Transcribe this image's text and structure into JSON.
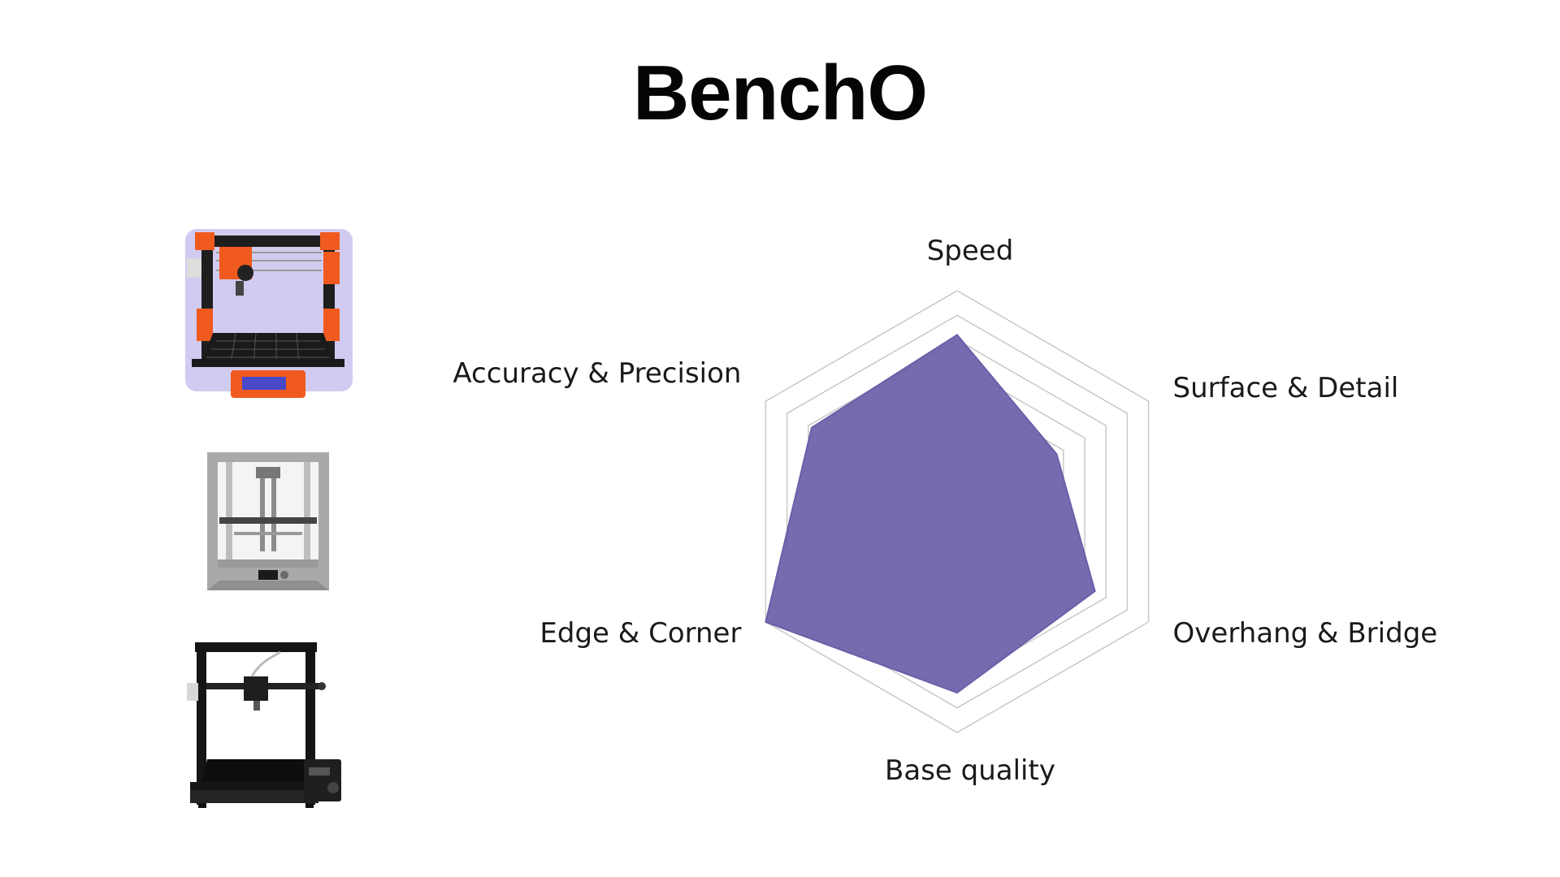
{
  "title": "BenchO",
  "printers": [
    {
      "icon": "orange-open-frame-printer-icon"
    },
    {
      "icon": "grey-enclosed-printer-icon"
    },
    {
      "icon": "black-open-frame-printer-icon"
    }
  ],
  "colors": {
    "fill": "#6b5ea8",
    "grid": "#c8c8c8",
    "label": "#1a1a1a"
  },
  "chart_data": {
    "type": "radar",
    "title": "BenchO",
    "axes": [
      "Speed",
      "Surface & Detail",
      "Overhang & Bridge",
      "Base quality",
      "Edge & Corner",
      "Accuracy & Precision"
    ],
    "max": 10,
    "grid_levels": 9,
    "grid": true,
    "series": [
      {
        "values": [
          8,
          5.2,
          7.2,
          8.2,
          10,
          7.6
        ]
      }
    ]
  }
}
